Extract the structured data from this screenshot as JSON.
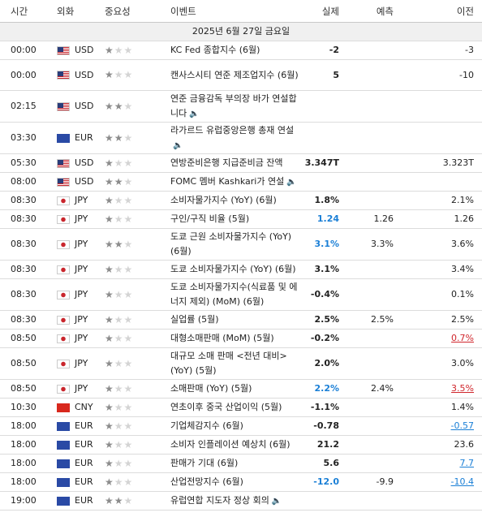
{
  "headers": {
    "time": "시간",
    "currency": "외화",
    "importance": "중요성",
    "event": "이벤트",
    "actual": "실제",
    "forecast": "예측",
    "previous": "이전"
  },
  "date_row": "2025년 6월 27일 금요일",
  "rows": [
    {
      "time": "00:00",
      "cur": "USD",
      "stars": 1,
      "event": "KC Fed 종합지수 (6월)",
      "actual": "-2",
      "forecast": "",
      "previous": "-3",
      "ac": "",
      "pc": "",
      "h": 23
    },
    {
      "time": "00:00",
      "cur": "USD",
      "stars": 1,
      "event": "캔사스시티 연준 제조업지수 (6월)",
      "actual": "5",
      "forecast": "",
      "previous": "-10",
      "ac": "",
      "pc": "",
      "h": 38
    },
    {
      "time": "02:15",
      "cur": "USD",
      "stars": 2,
      "event": "연준 금융감독 부의장 바가 연설합니다",
      "speech": true,
      "actual": "",
      "forecast": "",
      "previous": "",
      "ac": "",
      "pc": "",
      "h": 39
    },
    {
      "time": "03:30",
      "cur": "EUR",
      "stars": 2,
      "event": "라가르드 유럽중앙은행 총재 연설",
      "speech": true,
      "actual": "",
      "forecast": "",
      "previous": "",
      "ac": "",
      "pc": "",
      "h": 39
    },
    {
      "time": "05:30",
      "cur": "USD",
      "stars": 1,
      "event": "연방준비은행 지급준비금 잔액",
      "actual": "3.347T",
      "forecast": "",
      "previous": "3.323T",
      "ac": "",
      "pc": "",
      "h": 23
    },
    {
      "time": "08:00",
      "cur": "USD",
      "stars": 2,
      "event": "FOMC 멤버 Kashkari가 연설",
      "speech": true,
      "actual": "",
      "forecast": "",
      "previous": "",
      "ac": "",
      "pc": "",
      "h": 23
    },
    {
      "time": "08:30",
      "cur": "JPY",
      "stars": 1,
      "event": "소비자물가지수 (YoY) (6월)",
      "actual": "1.8%",
      "forecast": "",
      "previous": "2.1%",
      "ac": "",
      "pc": "",
      "h": 23
    },
    {
      "time": "08:30",
      "cur": "JPY",
      "stars": 1,
      "event": "구인/구직 비율 (5월)",
      "actual": "1.24",
      "forecast": "1.26",
      "previous": "1.26",
      "ac": "blue",
      "pc": "",
      "h": 23
    },
    {
      "time": "08:30",
      "cur": "JPY",
      "stars": 2,
      "event": "도쿄 근원 소비자물가지수 (YoY) (6월)",
      "actual": "3.1%",
      "forecast": "3.3%",
      "previous": "3.6%",
      "ac": "blue",
      "pc": "",
      "h": 39
    },
    {
      "time": "08:30",
      "cur": "JPY",
      "stars": 1,
      "event": "도쿄 소비자물가지수 (YoY) (6월)",
      "actual": "3.1%",
      "forecast": "",
      "previous": "3.4%",
      "ac": "",
      "pc": "",
      "h": 23
    },
    {
      "time": "08:30",
      "cur": "JPY",
      "stars": 1,
      "event": "도쿄 소비자물가지수(식료품 및 에너지 제외) (MoM) (6월)",
      "actual": "-0.4%",
      "forecast": "",
      "previous": "0.1%",
      "ac": "",
      "pc": "",
      "h": 39
    },
    {
      "time": "08:30",
      "cur": "JPY",
      "stars": 1,
      "event": "실업률 (5월)",
      "actual": "2.5%",
      "forecast": "2.5%",
      "previous": "2.5%",
      "ac": "",
      "pc": "",
      "h": 23
    },
    {
      "time": "08:50",
      "cur": "JPY",
      "stars": 1,
      "event": "대형소매판매 (MoM) (5월)",
      "actual": "-0.2%",
      "forecast": "",
      "previous": "0.7%",
      "ac": "",
      "pc": "red",
      "h": 23
    },
    {
      "time": "08:50",
      "cur": "JPY",
      "stars": 1,
      "event": "대규모 소매 판매 <전년 대비> (YoY) (5월)",
      "actual": "2.0%",
      "forecast": "",
      "previous": "3.0%",
      "ac": "",
      "pc": "",
      "h": 39
    },
    {
      "time": "08:50",
      "cur": "JPY",
      "stars": 1,
      "event": "소매판매 (YoY) (5월)",
      "actual": "2.2%",
      "forecast": "2.4%",
      "previous": "3.5%",
      "ac": "blue",
      "pc": "red",
      "h": 23
    },
    {
      "time": "10:30",
      "cur": "CNY",
      "stars": 1,
      "event": "연초이후 중국 산업이익 (5월)",
      "actual": "-1.1%",
      "forecast": "",
      "previous": "1.4%",
      "ac": "",
      "pc": "",
      "h": 23
    },
    {
      "time": "18:00",
      "cur": "EUR",
      "stars": 1,
      "event": "기업체감지수 (6월)",
      "actual": "-0.78",
      "forecast": "",
      "previous": "-0.57",
      "ac": "",
      "pc": "blueu",
      "h": 23
    },
    {
      "time": "18:00",
      "cur": "EUR",
      "stars": 1,
      "event": "소비자 인플레이션 예상치 (6월)",
      "actual": "21.2",
      "forecast": "",
      "previous": "23.6",
      "ac": "",
      "pc": "",
      "h": 23
    },
    {
      "time": "18:00",
      "cur": "EUR",
      "stars": 1,
      "event": "판매가 기대 (6월)",
      "actual": "5.6",
      "forecast": "",
      "previous": "7.7",
      "ac": "",
      "pc": "blueu",
      "h": 23
    },
    {
      "time": "18:00",
      "cur": "EUR",
      "stars": 1,
      "event": "산업전망지수 (6월)",
      "actual": "-12.0",
      "forecast": "-9.9",
      "previous": "-10.4",
      "ac": "blue",
      "pc": "blueu",
      "h": 23
    },
    {
      "time": "19:00",
      "cur": "EUR",
      "stars": 2,
      "event": "유럽연합 지도자 정상 회의",
      "speech": true,
      "actual": "",
      "forecast": "",
      "previous": "",
      "ac": "",
      "pc": "",
      "h": 23
    }
  ]
}
